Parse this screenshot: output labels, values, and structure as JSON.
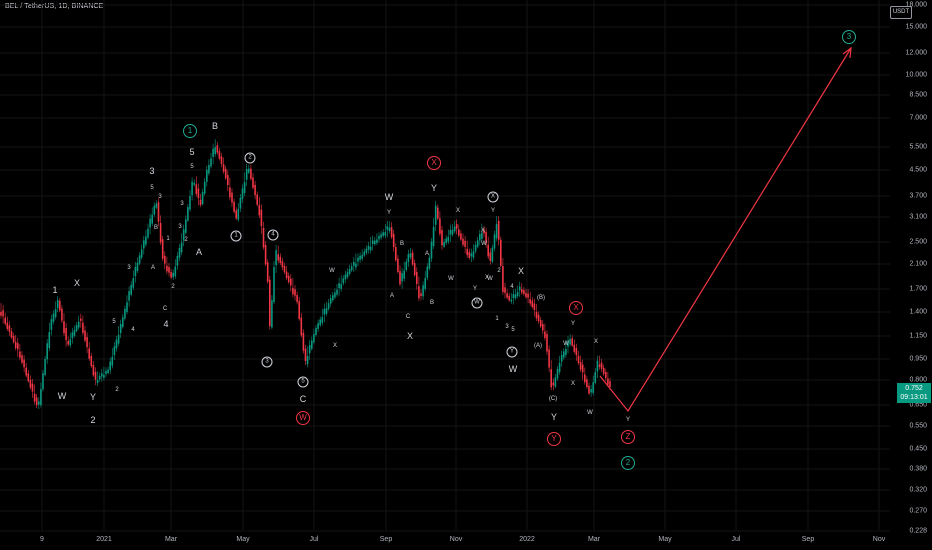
{
  "header": {
    "title": "BEL / TetherUS, 1D, BINANCE"
  },
  "price_axis": {
    "currency": "USDT",
    "ticks": [
      "18.000",
      "15.000",
      "12.000",
      "10.000",
      "8.500",
      "7.000",
      "5.500",
      "4.500",
      "3.700",
      "3.100",
      "2.500",
      "2.100",
      "1.700",
      "1.400",
      "1.150",
      "0.950",
      "0.800",
      "0.650",
      "0.550",
      "0.450",
      "0.380",
      "0.320",
      "0.270",
      "0.228"
    ],
    "last_price": "0.752",
    "countdown": "09:13:01",
    "last_price_color": "#089981"
  },
  "time_axis": {
    "ticks": [
      "9",
      "2021",
      "Mar",
      "May",
      "Jul",
      "Sep",
      "Nov",
      "2022",
      "Mar",
      "May",
      "Jul",
      "Sep",
      "Nov"
    ]
  },
  "colors": {
    "up": "#089981",
    "down": "#f23645",
    "projection": "#f23645",
    "label": "#d1d4dc",
    "background": "#000000"
  },
  "wave_labels": [
    {
      "t": "1",
      "k": "plain"
    },
    {
      "t": "X",
      "k": "plain"
    },
    {
      "t": "W",
      "k": "plain"
    },
    {
      "t": "Y",
      "k": "plain"
    },
    {
      "t": "2",
      "k": "plain"
    },
    {
      "t": "3",
      "k": "plain"
    },
    {
      "t": "5",
      "k": "small"
    },
    {
      "t": "3",
      "k": "small"
    },
    {
      "t": "1",
      "k": "small"
    },
    {
      "t": "2",
      "k": "small"
    },
    {
      "t": "4",
      "k": "small"
    },
    {
      "t": "B",
      "k": "small"
    },
    {
      "t": "A",
      "k": "small"
    },
    {
      "t": "C",
      "k": "small"
    },
    {
      "t": "2",
      "k": "small"
    },
    {
      "t": "4",
      "k": "plain"
    },
    {
      "t": "3",
      "k": "small"
    },
    {
      "t": "5",
      "k": "small"
    },
    {
      "t": "3",
      "k": "small"
    },
    {
      "t": "2",
      "k": "small"
    },
    {
      "t": "1",
      "k": "circle-green"
    },
    {
      "t": "5",
      "k": "plain"
    },
    {
      "t": "5",
      "k": "small"
    },
    {
      "t": "3",
      "k": "small"
    },
    {
      "t": "A",
      "k": "plain"
    },
    {
      "t": "B",
      "k": "plain"
    },
    {
      "t": "2",
      "k": "circle"
    },
    {
      "t": "1",
      "k": "circle"
    },
    {
      "t": "4",
      "k": "circle"
    },
    {
      "t": "3",
      "k": "circle"
    },
    {
      "t": "5",
      "k": "circle"
    },
    {
      "t": "C",
      "k": "plain"
    },
    {
      "t": "W",
      "k": "circle-red"
    },
    {
      "t": "W",
      "k": "small"
    },
    {
      "t": "X",
      "k": "small"
    },
    {
      "t": "W",
      "k": "plain"
    },
    {
      "t": "Y",
      "k": "small"
    },
    {
      "t": "B",
      "k": "small"
    },
    {
      "t": "A",
      "k": "small"
    },
    {
      "t": "C",
      "k": "small"
    },
    {
      "t": "X",
      "k": "plain"
    },
    {
      "t": "X",
      "k": "circle-red"
    },
    {
      "t": "Y",
      "k": "plain"
    },
    {
      "t": "A",
      "k": "small"
    },
    {
      "t": "B",
      "k": "small"
    },
    {
      "t": "X",
      "k": "small"
    },
    {
      "t": "W",
      "k": "small"
    },
    {
      "t": "Y",
      "k": "small"
    },
    {
      "t": "X",
      "k": "small"
    },
    {
      "t": "W",
      "k": "small"
    },
    {
      "t": "X",
      "k": "circle"
    },
    {
      "t": "Y",
      "k": "small"
    },
    {
      "t": "W",
      "k": "small"
    },
    {
      "t": "2",
      "k": "small"
    },
    {
      "t": "X",
      "k": "small"
    },
    {
      "t": "4",
      "k": "small"
    },
    {
      "t": "W",
      "k": "circle"
    },
    {
      "t": "1",
      "k": "small"
    },
    {
      "t": "3",
      "k": "small"
    },
    {
      "t": "5",
      "k": "small"
    },
    {
      "t": "Y",
      "k": "circle"
    },
    {
      "t": "W",
      "k": "plain"
    },
    {
      "t": "X",
      "k": "plain"
    },
    {
      "t": "(B)",
      "k": "small"
    },
    {
      "t": "(A)",
      "k": "small"
    },
    {
      "t": "(C)",
      "k": "small"
    },
    {
      "t": "Y",
      "k": "plain"
    },
    {
      "t": "Y",
      "k": "circle-red"
    },
    {
      "t": "X",
      "k": "circle-red"
    },
    {
      "t": "Y",
      "k": "small"
    },
    {
      "t": "W",
      "k": "small"
    },
    {
      "t": "X",
      "k": "small"
    },
    {
      "t": "X",
      "k": "small"
    },
    {
      "t": "W",
      "k": "small"
    },
    {
      "t": "Y",
      "k": "small"
    },
    {
      "t": "Z",
      "k": "circle-red"
    },
    {
      "t": "2",
      "k": "circle-green"
    },
    {
      "t": "3",
      "k": "circle-green"
    }
  ]
}
